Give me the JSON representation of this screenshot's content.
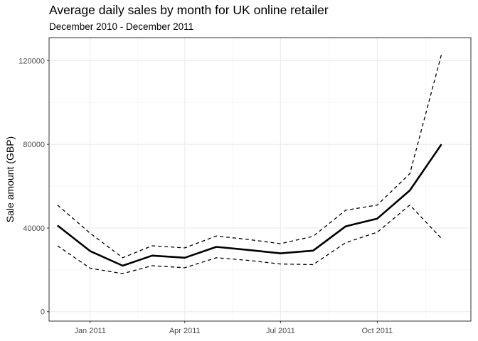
{
  "chart_data": {
    "type": "line",
    "title": "Average daily sales by month for UK online retailer",
    "subtitle": "December 2010 - December 2011",
    "xlabel": "",
    "ylabel": "Sale amount (GBP)",
    "x": [
      "2010-12-01",
      "2011-01-01",
      "2011-02-01",
      "2011-03-01",
      "2011-04-01",
      "2011-05-01",
      "2011-06-01",
      "2011-07-01",
      "2011-08-01",
      "2011-09-01",
      "2011-10-01",
      "2011-11-01",
      "2011-12-01"
    ],
    "series": [
      {
        "style": "solid",
        "color": "#000000",
        "values": [
          41200,
          29000,
          22000,
          26800,
          25800,
          31000,
          29500,
          27900,
          29200,
          40800,
          44500,
          58000,
          80000
        ]
      },
      {
        "style": "dashed",
        "color": "#000000",
        "values": [
          51000,
          37500,
          25800,
          31500,
          30500,
          36200,
          34500,
          32500,
          36000,
          48500,
          51000,
          66000,
          123000
        ]
      },
      {
        "style": "dashed",
        "color": "#000000",
        "values": [
          31500,
          20800,
          18200,
          22000,
          21000,
          25800,
          24500,
          22800,
          22500,
          33000,
          38000,
          51000,
          35000
        ]
      }
    ],
    "ylim": [
      -4500,
      131000
    ],
    "xlim": [
      "2010-11-23",
      "2011-12-29"
    ],
    "yticks": [
      0,
      40000,
      80000,
      120000
    ],
    "ytick_labels": [
      "0",
      "40000",
      "80000",
      "120000"
    ],
    "xticks": [
      "2011-01-01",
      "2011-04-01",
      "2011-07-01",
      "2011-10-01"
    ],
    "xtick_labels": [
      "Jan 2011",
      "Apr 2011",
      "Jul 2011",
      "Oct 2011"
    ],
    "grid": true,
    "legend": "none"
  }
}
